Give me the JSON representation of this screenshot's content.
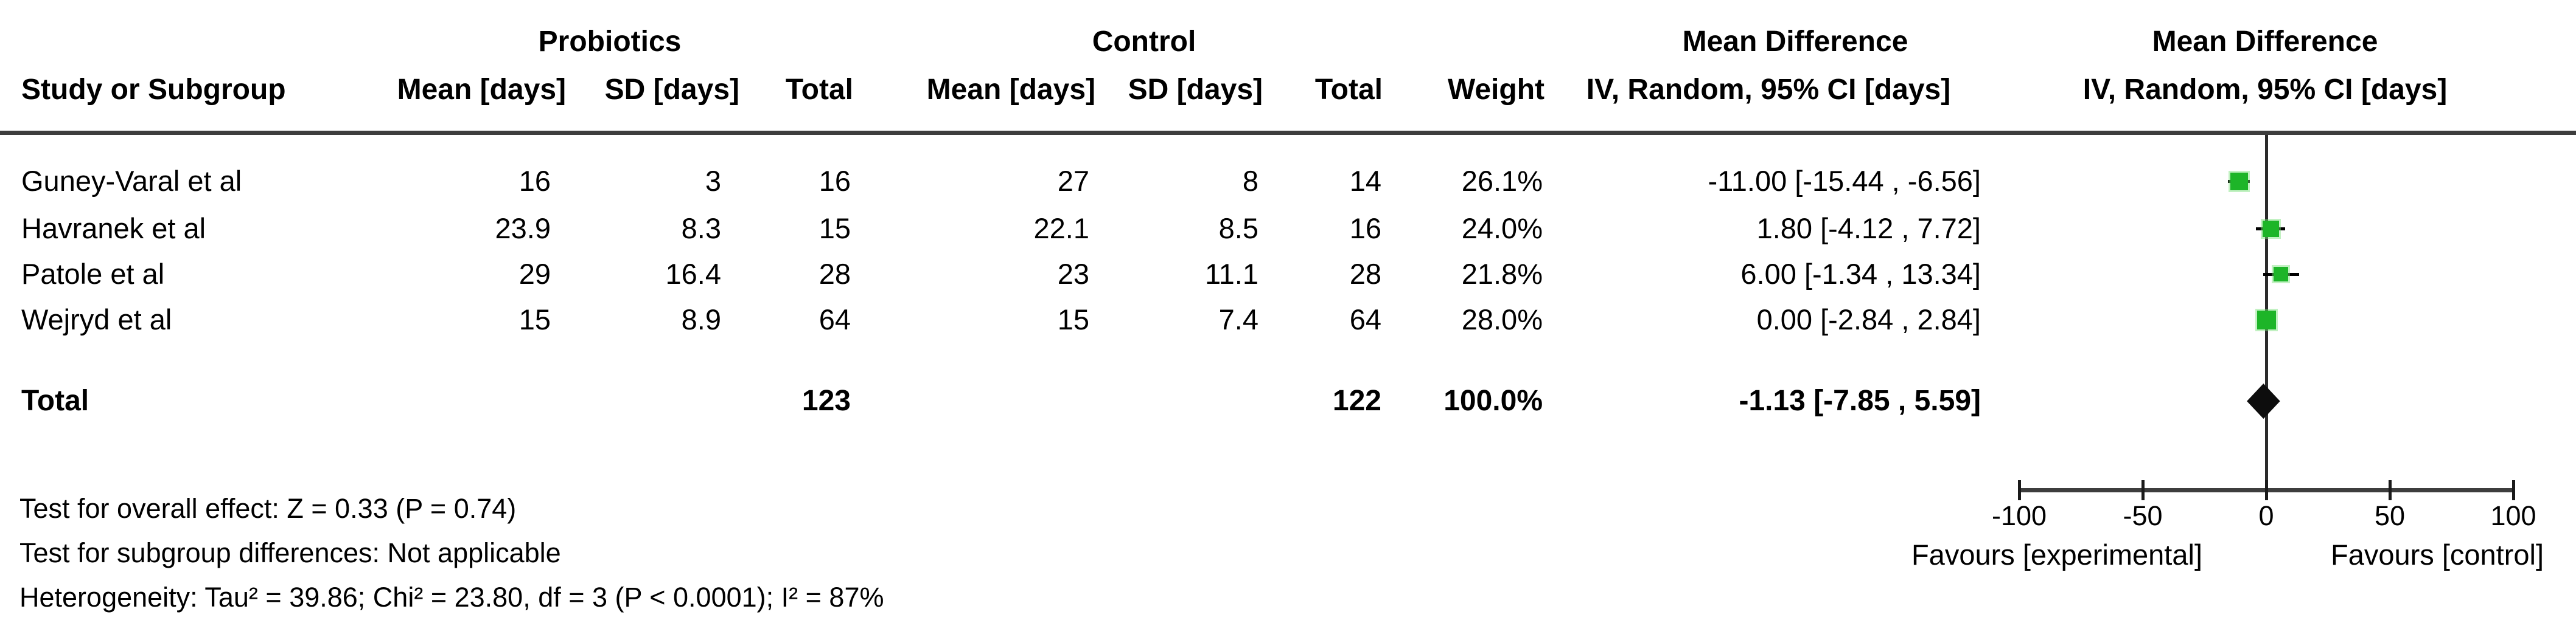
{
  "colors": {
    "marker_green": "#1db528",
    "diamond_black": "#0d0d0d",
    "line_dark": "#3d3d3d"
  },
  "table": {
    "group_headers": {
      "probiotics": "Probiotics",
      "control": "Control",
      "md_text_col": "Mean Difference",
      "md_plot_col": "Mean Difference"
    },
    "col_headers": {
      "study": "Study or Subgroup",
      "p_mean": "Mean [days]",
      "p_sd": "SD [days]",
      "p_total": "Total",
      "c_mean": "Mean [days]",
      "c_sd": "SD [days]",
      "c_total": "Total",
      "weight": "Weight",
      "ci_text": "IV, Random, 95% CI [days]",
      "ci_plot": "IV, Random, 95% CI [days]"
    },
    "total_label": "Total"
  },
  "footnotes": {
    "overall_effect": "Test for overall effect: Z = 0.33 (P = 0.74)",
    "subgroup": "Test for subgroup differences: Not applicable",
    "heterogeneity": "Heterogeneity: Tau² = 39.86; Chi² = 23.80, df = 3 (P < 0.0001); I² = 87%"
  },
  "axis": {
    "favours_left": "Favours [experimental]",
    "favours_right": "Favours [control]"
  },
  "chart_data": {
    "type": "forest",
    "effect_measure": "Mean Difference, IV, Random, 95% CI [days]",
    "studies": [
      {
        "name": "Guney-Varal et al",
        "probiotics": {
          "mean": 16,
          "sd": 3,
          "total": 16
        },
        "control": {
          "mean": 27,
          "sd": 8,
          "total": 14
        },
        "weight_pct": 26.1,
        "md": -11.0,
        "ci_low": -15.44,
        "ci_high": -6.56
      },
      {
        "name": "Havranek et al",
        "probiotics": {
          "mean": 23.9,
          "sd": 8.3,
          "total": 15
        },
        "control": {
          "mean": 22.1,
          "sd": 8.5,
          "total": 16
        },
        "weight_pct": 24.0,
        "md": 1.8,
        "ci_low": -4.12,
        "ci_high": 7.72
      },
      {
        "name": "Patole et al",
        "probiotics": {
          "mean": 29,
          "sd": 16.4,
          "total": 28
        },
        "control": {
          "mean": 23,
          "sd": 11.1,
          "total": 28
        },
        "weight_pct": 21.8,
        "md": 6.0,
        "ci_low": -1.34,
        "ci_high": 13.34
      },
      {
        "name": "Wejryd et al",
        "probiotics": {
          "mean": 15,
          "sd": 8.9,
          "total": 64
        },
        "control": {
          "mean": 15,
          "sd": 7.4,
          "total": 64
        },
        "weight_pct": 28.0,
        "md": 0.0,
        "ci_low": -2.84,
        "ci_high": 2.84
      }
    ],
    "total": {
      "probiotics_total": 123,
      "control_total": 122,
      "weight_pct": 100.0,
      "md": -1.13,
      "ci_low": -7.85,
      "ci_high": 5.59
    },
    "xlim": [
      -100,
      100
    ],
    "xticks": [
      -100,
      -50,
      0,
      50,
      100
    ],
    "legend_left": "Favours [experimental]",
    "legend_right": "Favours [control]"
  }
}
